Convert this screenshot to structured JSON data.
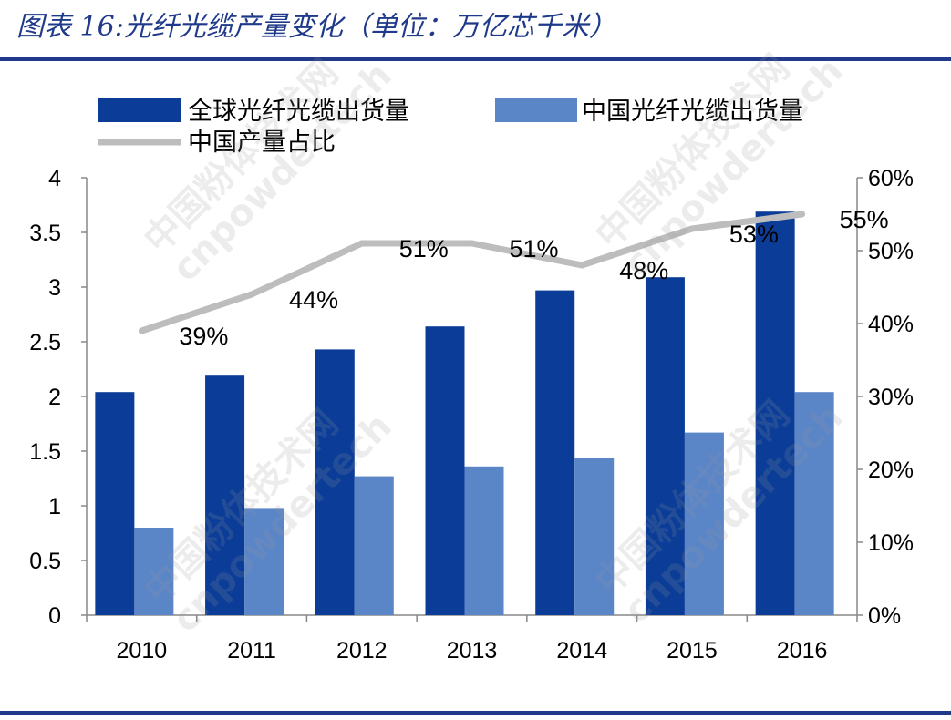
{
  "title": "图表 16:光纤光缆产量变化（单位：万亿芯千米）",
  "watermark": {
    "line1": "中国粉体技术网",
    "line2": "cnpowdertech"
  },
  "colors": {
    "global": "#0B3D98",
    "china": "#5A86C8",
    "share": "#BDBDBD",
    "brand": "#1F3A8A"
  },
  "chart_data": {
    "type": "bar",
    "categories": [
      "2010",
      "2011",
      "2012",
      "2013",
      "2014",
      "2015",
      "2016"
    ],
    "series": [
      {
        "name": "全球光纤光缆出货量",
        "type": "bar",
        "axis": "left",
        "values": [
          2.04,
          2.19,
          2.43,
          2.64,
          2.97,
          3.09,
          3.69
        ]
      },
      {
        "name": "中国光纤光缆出货量",
        "type": "bar",
        "axis": "left",
        "values": [
          0.8,
          0.98,
          1.27,
          1.36,
          1.44,
          1.67,
          2.04
        ]
      },
      {
        "name": "中国产量占比",
        "type": "line",
        "axis": "right",
        "values": [
          39,
          44,
          51,
          51,
          48,
          53,
          55
        ],
        "labels": [
          "39%",
          "44%",
          "51%",
          "51%",
          "48%",
          "53%",
          "55%"
        ]
      }
    ],
    "left_axis": {
      "min": 0,
      "max": 4,
      "ticks": [
        "0",
        "0.5",
        "1",
        "1.5",
        "2",
        "2.5",
        "3",
        "3.5",
        "4"
      ]
    },
    "right_axis": {
      "min": 0,
      "max": 60,
      "ticks": [
        "0%",
        "10%",
        "20%",
        "30%",
        "40%",
        "50%",
        "60%"
      ]
    },
    "legend": "top"
  }
}
